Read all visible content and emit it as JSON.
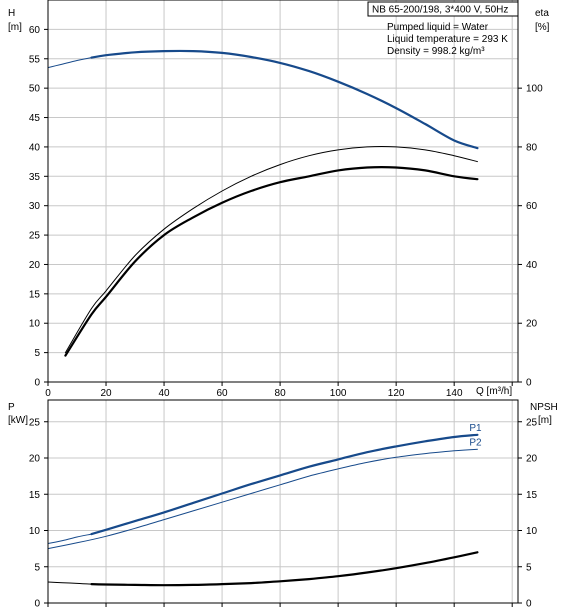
{
  "colors": {
    "blue": "#174a8b",
    "black": "#000000",
    "grid": "#c8c8c8"
  },
  "chart_data": [
    {
      "type": "line",
      "title": "NB 65-200/198, 3*400 V, 50Hz",
      "info": [
        "Pumped liquid = Water",
        "Liquid temperature = 293 K",
        "Density = 998.2 kg/m³"
      ],
      "x_label": "Q [m³/h]",
      "x_ticks": [
        "0",
        "20",
        "40",
        "60",
        "80",
        "100",
        "120",
        "140"
      ],
      "xlim": [
        0,
        162
      ],
      "y_left": {
        "label_top": "H",
        "label_unit": "[m]",
        "ylim": [
          0,
          65
        ],
        "ticks": [
          "0",
          "5",
          "10",
          "15",
          "20",
          "25",
          "30",
          "35",
          "40",
          "45",
          "50",
          "55",
          "60"
        ]
      },
      "y_right": {
        "label_top": "eta",
        "label_unit": "[%]",
        "ylim": [
          0,
          130
        ],
        "ticks": [
          "0",
          "20",
          "40",
          "60",
          "80",
          "100"
        ]
      },
      "grid": true,
      "series": [
        {
          "axis": "left",
          "color": "blue",
          "weight": "thick",
          "x": [
            15,
            20,
            30,
            40,
            50,
            60,
            70,
            80,
            90,
            100,
            110,
            120,
            130,
            140,
            148
          ],
          "y": [
            55.2,
            55.6,
            56.1,
            56.3,
            56.3,
            56.0,
            55.3,
            54.3,
            52.9,
            51.1,
            49.0,
            46.6,
            43.9,
            41.1,
            39.8
          ]
        },
        {
          "axis": "left",
          "color": "blue",
          "weight": "thin",
          "x": [
            0,
            5,
            10,
            15
          ],
          "y": [
            53.5,
            54.1,
            54.7,
            55.2
          ]
        },
        {
          "axis": "right",
          "color": "black",
          "weight": "thin",
          "x": [
            6,
            15,
            20,
            30,
            40,
            50,
            60,
            70,
            80,
            90,
            100,
            110,
            120,
            130,
            140,
            148
          ],
          "y": [
            10,
            25,
            31,
            43,
            52,
            59,
            65,
            70,
            74,
            77,
            79,
            80,
            80,
            79,
            77,
            75
          ]
        },
        {
          "axis": "right",
          "color": "black",
          "weight": "thick",
          "x": [
            6,
            15,
            20,
            30,
            40,
            50,
            60,
            70,
            80,
            90,
            100,
            110,
            120,
            130,
            140,
            148
          ],
          "y": [
            9,
            23,
            29,
            41,
            50,
            56,
            61,
            65,
            68,
            70,
            72,
            73,
            73,
            72,
            70,
            69
          ]
        }
      ]
    },
    {
      "type": "line",
      "x_label": "",
      "xlim": [
        0,
        162
      ],
      "y_left": {
        "label_top": "P",
        "label_unit": "[kW]",
        "ylim": [
          0,
          28
        ],
        "ticks": [
          "0",
          "5",
          "10",
          "15",
          "20",
          "25"
        ]
      },
      "y_right": {
        "label_top": "NPSH",
        "label_unit": "[m]",
        "ylim": [
          0,
          28
        ],
        "ticks": [
          "0",
          "5",
          "10",
          "15",
          "20",
          "25"
        ]
      },
      "grid": true,
      "series": [
        {
          "name": "P1",
          "axis": "left",
          "color": "blue",
          "weight": "thick",
          "x": [
            15,
            20,
            30,
            40,
            50,
            60,
            70,
            80,
            90,
            100,
            110,
            120,
            130,
            140,
            148
          ],
          "y": [
            9.5,
            10.1,
            11.3,
            12.5,
            13.8,
            15.1,
            16.4,
            17.6,
            18.8,
            19.8,
            20.8,
            21.6,
            22.3,
            22.9,
            23.2
          ]
        },
        {
          "axis": "left",
          "color": "blue",
          "weight": "thin",
          "x": [
            0,
            5,
            10,
            15
          ],
          "y": [
            8.2,
            8.6,
            9.1,
            9.5
          ]
        },
        {
          "name": "P2",
          "axis": "left",
          "color": "blue",
          "weight": "thin",
          "x": [
            0,
            10,
            20,
            30,
            40,
            50,
            60,
            70,
            80,
            90,
            100,
            110,
            120,
            130,
            140,
            148
          ],
          "y": [
            7.5,
            8.3,
            9.2,
            10.3,
            11.5,
            12.7,
            13.9,
            15.1,
            16.3,
            17.5,
            18.5,
            19.4,
            20.1,
            20.6,
            21.0,
            21.2
          ]
        },
        {
          "axis": "right",
          "color": "black",
          "weight": "thick",
          "x": [
            15,
            20,
            30,
            40,
            50,
            60,
            70,
            80,
            90,
            100,
            110,
            120,
            130,
            140,
            148
          ],
          "y": [
            2.6,
            2.55,
            2.5,
            2.45,
            2.5,
            2.6,
            2.75,
            3.0,
            3.3,
            3.7,
            4.2,
            4.8,
            5.5,
            6.3,
            7.0
          ]
        },
        {
          "axis": "right",
          "color": "black",
          "weight": "thin",
          "x": [
            0,
            5,
            10,
            15
          ],
          "y": [
            2.9,
            2.8,
            2.7,
            2.6
          ]
        }
      ]
    }
  ]
}
